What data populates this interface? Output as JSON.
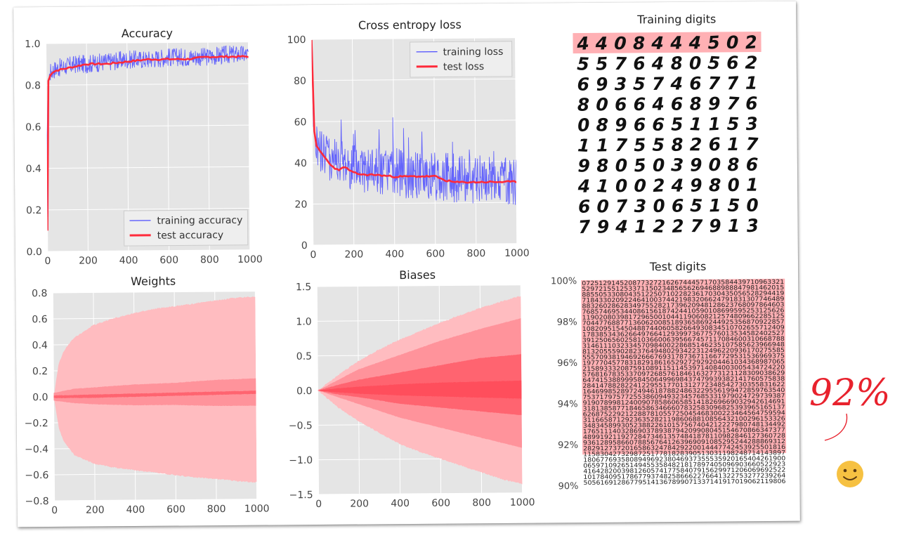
{
  "colors": {
    "plot_bg": "#e5e5e5",
    "training": "#4d4dff",
    "test": "#ff2a3a",
    "band_light": "#ffbcc0",
    "band_mid": "#ff939b",
    "band_dark": "#ff6470",
    "digit_highlight": "#ffb0b4",
    "annotation_ink": "#e8222d",
    "smiley": "#f6c142"
  },
  "chart_data": [
    {
      "type": "line",
      "title": "Accuracy",
      "xlabel": "",
      "ylabel": "",
      "xlim": [
        0,
        1000
      ],
      "ylim": [
        0,
        1.0
      ],
      "xticks": [
        "0",
        "200",
        "400",
        "600",
        "800",
        "1000"
      ],
      "yticks": [
        "0.0",
        "0.2",
        "0.4",
        "0.6",
        "0.8",
        "1.0"
      ],
      "legend": "bottom-right",
      "grid": true,
      "series": [
        {
          "name": "training accuracy",
          "x": [
            0,
            2,
            5,
            10,
            20,
            30,
            50,
            100,
            150,
            200,
            300,
            400,
            500,
            600,
            700,
            800,
            900,
            1000
          ],
          "y": [
            0.1,
            0.55,
            0.7,
            0.82,
            0.86,
            0.87,
            0.88,
            0.89,
            0.9,
            0.9,
            0.91,
            0.92,
            0.92,
            0.93,
            0.93,
            0.93,
            0.94,
            0.94
          ]
        },
        {
          "name": "test accuracy",
          "x": [
            0,
            2,
            5,
            10,
            20,
            30,
            50,
            100,
            150,
            200,
            300,
            400,
            500,
            600,
            700,
            800,
            900,
            1000
          ],
          "y": [
            0.1,
            0.55,
            0.72,
            0.82,
            0.85,
            0.86,
            0.87,
            0.88,
            0.89,
            0.9,
            0.9,
            0.91,
            0.92,
            0.92,
            0.92,
            0.93,
            0.93,
            0.93
          ]
        }
      ]
    },
    {
      "type": "line",
      "title": "Cross entropy loss",
      "xlabel": "",
      "ylabel": "",
      "xlim": [
        0,
        1000
      ],
      "ylim": [
        0,
        100
      ],
      "xticks": [
        "0",
        "200",
        "400",
        "600",
        "800",
        "1000"
      ],
      "yticks": [
        "0",
        "20",
        "40",
        "60",
        "80",
        "100"
      ],
      "legend": "top-right",
      "grid": true,
      "series": [
        {
          "name": "training loss",
          "x": [
            0,
            5,
            10,
            20,
            50,
            100,
            150,
            200,
            300,
            400,
            500,
            600,
            700,
            800,
            900,
            1000
          ],
          "y": [
            100,
            60,
            55,
            48,
            45,
            42,
            40,
            38,
            36,
            35,
            34,
            33,
            32,
            31,
            31,
            30
          ]
        },
        {
          "name": "test loss",
          "x": [
            0,
            5,
            10,
            20,
            50,
            80,
            100,
            130,
            150,
            170,
            200,
            250,
            300,
            400,
            500,
            600,
            650,
            700,
            800,
            900,
            1000
          ],
          "y": [
            100,
            70,
            55,
            48,
            44,
            40,
            38,
            36,
            38,
            37,
            35,
            34,
            34,
            33,
            33,
            33,
            31,
            30,
            30,
            30,
            30
          ]
        }
      ]
    },
    {
      "type": "area",
      "title": "Weights",
      "xlim": [
        0,
        1000
      ],
      "ylim": [
        -0.8,
        0.8
      ],
      "xticks": [
        "0",
        "200",
        "400",
        "600",
        "800",
        "1000"
      ],
      "yticks": [
        "0.8",
        "0.6",
        "0.4",
        "0.2",
        "0.0",
        "−0.2",
        "−0.4",
        "−0.6",
        "−0.8"
      ],
      "grid": true,
      "bands": [
        {
          "x": [
            0,
            25,
            50,
            100,
            200,
            300,
            400,
            500,
            600,
            700,
            800,
            900,
            1000
          ],
          "upper": [
            0,
            0.25,
            0.35,
            0.45,
            0.55,
            0.6,
            0.64,
            0.67,
            0.69,
            0.71,
            0.73,
            0.75,
            0.76
          ],
          "lower": [
            0,
            -0.25,
            -0.35,
            -0.45,
            -0.52,
            -0.55,
            -0.57,
            -0.59,
            -0.61,
            -0.63,
            -0.64,
            -0.66,
            -0.67
          ]
        },
        {
          "x": [
            0,
            100,
            200,
            400,
            600,
            800,
            1000
          ],
          "upper": [
            0.03,
            0.06,
            0.07,
            0.09,
            0.1,
            0.12,
            0.13
          ],
          "lower": [
            -0.03,
            -0.05,
            -0.06,
            -0.07,
            -0.07,
            -0.08,
            -0.08
          ]
        },
        {
          "x": [
            0,
            200,
            400,
            600,
            800,
            1000
          ],
          "upper": [
            0.01,
            0.015,
            0.02,
            0.025,
            0.03,
            0.035
          ],
          "lower": [
            -0.01,
            -0.01,
            -0.005,
            0,
            0.005,
            0.01
          ]
        }
      ]
    },
    {
      "type": "area",
      "title": "Biases",
      "xlim": [
        0,
        1000
      ],
      "ylim": [
        -1.5,
        1.5
      ],
      "xticks": [
        "0",
        "200",
        "400",
        "600",
        "800",
        "1000"
      ],
      "yticks": [
        "1.5",
        "1.0",
        "0.5",
        "0.0",
        "−0.5",
        "−1.0",
        "−1.5"
      ],
      "grid": true,
      "bands": [
        {
          "x": [
            0,
            100,
            200,
            300,
            400,
            500,
            600,
            700,
            800,
            900,
            1000
          ],
          "upper": [
            0,
            0.22,
            0.42,
            0.58,
            0.72,
            0.84,
            0.96,
            1.07,
            1.17,
            1.26,
            1.34
          ],
          "lower": [
            0,
            -0.25,
            -0.45,
            -0.62,
            -0.78,
            -0.9,
            -1.0,
            -1.1,
            -1.2,
            -1.3,
            -1.37
          ]
        },
        {
          "x": [
            0,
            100,
            200,
            400,
            600,
            800,
            1000
          ],
          "upper": [
            0,
            0.15,
            0.3,
            0.5,
            0.7,
            0.87,
            1.02
          ],
          "lower": [
            0,
            -0.1,
            -0.2,
            -0.4,
            -0.55,
            -0.7,
            -0.85
          ]
        },
        {
          "x": [
            0,
            100,
            200,
            400,
            600,
            800,
            1000
          ],
          "upper": [
            0,
            0.08,
            0.15,
            0.25,
            0.35,
            0.45,
            0.5
          ],
          "lower": [
            0,
            -0.06,
            -0.1,
            -0.2,
            -0.26,
            -0.32,
            -0.38
          ]
        },
        {
          "x": [
            0,
            100,
            200,
            400,
            600,
            800,
            1000
          ],
          "upper": [
            0,
            0.03,
            0.05,
            0.08,
            0.1,
            0.11,
            0.12
          ],
          "lower": [
            0,
            -0.03,
            -0.05,
            -0.08,
            -0.1,
            -0.12,
            -0.14
          ]
        }
      ]
    }
  ],
  "training_digits": {
    "title": "Training digits",
    "rows": [
      "4408444502",
      "5576480562",
      "6935746771",
      "8066468976",
      "0896651153",
      "1175582617",
      "9805039086",
      "4100249801",
      "6073065150",
      "7941227913"
    ],
    "highlight_rows": 1
  },
  "test_digits": {
    "title": "Test digits",
    "yticks": [
      "100%",
      "98%",
      "96%",
      "94%",
      "92%",
      "90%"
    ],
    "highlight_fraction": 0.85
  },
  "annotation": {
    "text": "92%",
    "emoji": "smiley"
  }
}
